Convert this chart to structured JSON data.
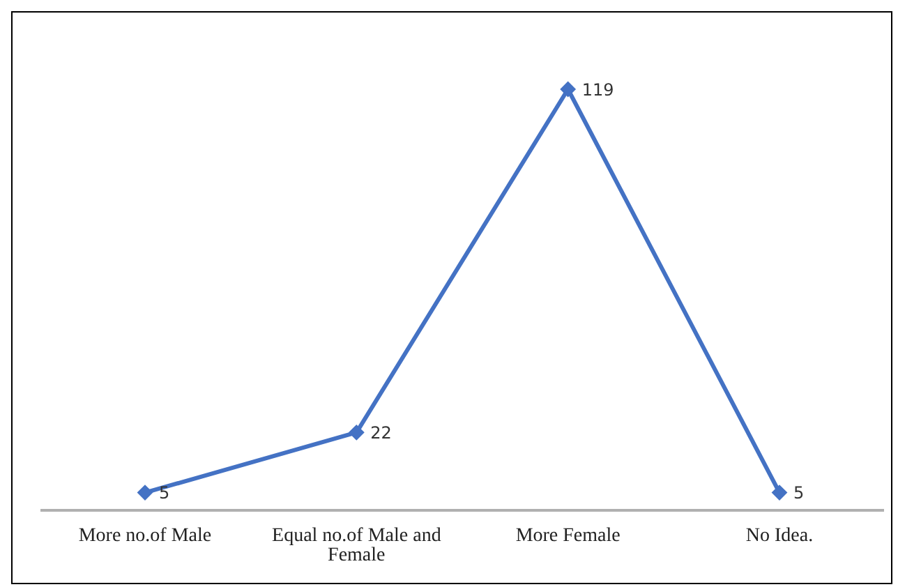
{
  "chart_data": {
    "type": "line",
    "categories": [
      "More no.of Male",
      "Equal no.of Male and Female",
      "More Female",
      "No Idea."
    ],
    "series": [
      {
        "color": "#4472c4",
        "values": [
          5,
          22,
          119,
          5
        ]
      }
    ],
    "data_labels": true,
    "marker": "diamond",
    "grid": false,
    "legend": false
  }
}
